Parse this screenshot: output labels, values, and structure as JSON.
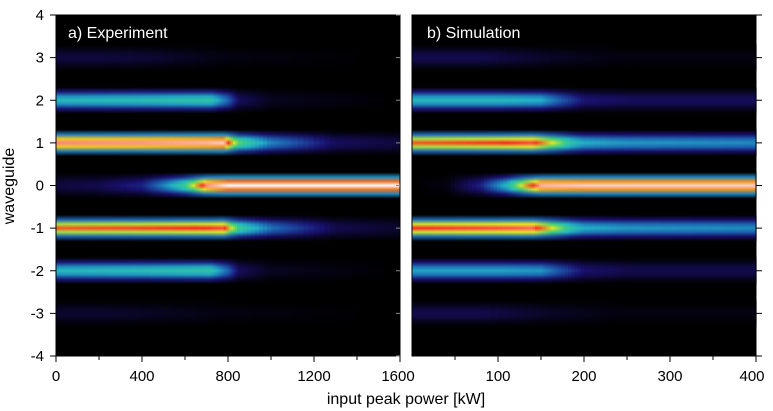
{
  "figure": {
    "ylabel": "waveguide",
    "xlabel": "input peak power [kW]"
  },
  "chart_data": [
    {
      "type": "heatmap",
      "panel_title": "a) Experiment",
      "xlim": [
        0,
        1600
      ],
      "ylim": [
        -4,
        4
      ],
      "x_ticks": [
        "0",
        "400",
        "800",
        "1200",
        "1600"
      ],
      "y_ticks": [
        "4",
        "3",
        "2",
        "1",
        "0",
        "-1",
        "-2",
        "-3",
        "-4"
      ],
      "colormap": [
        "#000000",
        "#1a1070",
        "#1c5fb0",
        "#22b8c8",
        "#3fcf7a",
        "#e8e820",
        "#ff2020",
        "#ffffff"
      ],
      "rows": [
        {
          "waveguide": 3,
          "x": [
            0,
            200,
            400,
            800,
            1600
          ],
          "intensity": [
            0.08,
            0.08,
            0.07,
            0.02,
            0.0
          ]
        },
        {
          "waveguide": 2,
          "x": [
            0,
            400,
            720,
            800,
            850,
            1000,
            1600
          ],
          "intensity": [
            0.45,
            0.47,
            0.5,
            0.3,
            0.12,
            0.04,
            0.0
          ]
        },
        {
          "waveguide": 1,
          "x": [
            0,
            400,
            700,
            780,
            850,
            1000,
            1100,
            1300,
            1600
          ],
          "intensity": [
            0.92,
            0.93,
            0.95,
            0.97,
            0.6,
            0.35,
            0.28,
            0.12,
            0.08
          ]
        },
        {
          "waveguide": 0,
          "x": [
            0,
            200,
            400,
            500,
            600,
            650,
            700,
            800,
            1000,
            1600
          ],
          "intensity": [
            0.08,
            0.1,
            0.18,
            0.35,
            0.55,
            0.75,
            0.92,
            1.0,
            1.0,
            1.0
          ]
        },
        {
          "waveguide": -1,
          "x": [
            0,
            400,
            700,
            780,
            850,
            1000,
            1100,
            1300,
            1600
          ],
          "intensity": [
            0.82,
            0.84,
            0.86,
            0.88,
            0.55,
            0.32,
            0.25,
            0.1,
            0.06
          ]
        },
        {
          "waveguide": -2,
          "x": [
            0,
            400,
            720,
            800,
            850,
            1000,
            1600
          ],
          "intensity": [
            0.45,
            0.47,
            0.5,
            0.3,
            0.12,
            0.04,
            0.0
          ]
        },
        {
          "waveguide": -3,
          "x": [
            0,
            200,
            400,
            800,
            1600
          ],
          "intensity": [
            0.06,
            0.06,
            0.05,
            0.02,
            0.0
          ]
        }
      ]
    },
    {
      "type": "heatmap",
      "panel_title": "b) Simulation",
      "xlim": [
        0,
        400
      ],
      "ylim": [
        -4,
        4
      ],
      "x_ticks": [
        "100",
        "200",
        "300",
        "400"
      ],
      "colormap": [
        "#000000",
        "#1a1070",
        "#1c5fb0",
        "#22b8c8",
        "#3fcf7a",
        "#e8e820",
        "#ff2020",
        "#ffffff"
      ],
      "rows": [
        {
          "waveguide": 3,
          "x": [
            0,
            80,
            160,
            240,
            400
          ],
          "intensity": [
            0.1,
            0.1,
            0.05,
            0.02,
            0.02
          ]
        },
        {
          "waveguide": 2,
          "x": [
            0,
            100,
            150,
            170,
            200,
            250,
            400
          ],
          "intensity": [
            0.45,
            0.45,
            0.42,
            0.3,
            0.15,
            0.12,
            0.12
          ]
        },
        {
          "waveguide": 1,
          "x": [
            0,
            100,
            140,
            165,
            185,
            200,
            250,
            400
          ],
          "intensity": [
            0.82,
            0.85,
            0.88,
            0.7,
            0.5,
            0.42,
            0.38,
            0.36
          ]
        },
        {
          "waveguide": 0,
          "x": [
            0,
            40,
            80,
            110,
            130,
            150,
            200,
            400
          ],
          "intensity": [
            0.0,
            0.02,
            0.18,
            0.45,
            0.75,
            0.95,
            0.97,
            0.97
          ]
        },
        {
          "waveguide": -1,
          "x": [
            0,
            100,
            140,
            165,
            185,
            200,
            250,
            400
          ],
          "intensity": [
            0.86,
            0.88,
            0.9,
            0.7,
            0.5,
            0.42,
            0.38,
            0.36
          ]
        },
        {
          "waveguide": -2,
          "x": [
            0,
            100,
            150,
            170,
            200,
            250,
            400
          ],
          "intensity": [
            0.4,
            0.4,
            0.38,
            0.28,
            0.14,
            0.1,
            0.1
          ]
        },
        {
          "waveguide": -3,
          "x": [
            0,
            80,
            160,
            240,
            400
          ],
          "intensity": [
            0.1,
            0.1,
            0.05,
            0.02,
            0.02
          ]
        }
      ]
    }
  ]
}
